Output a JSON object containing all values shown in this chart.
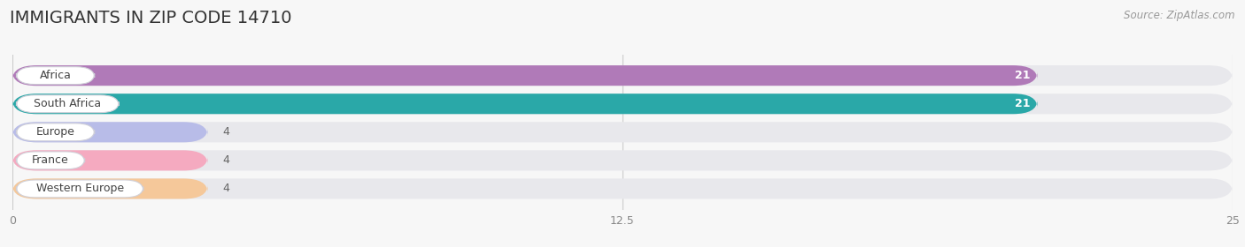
{
  "title": "IMMIGRANTS IN ZIP CODE 14710",
  "source_text": "Source: ZipAtlas.com",
  "categories": [
    "Africa",
    "South Africa",
    "Europe",
    "France",
    "Western Europe"
  ],
  "values": [
    21,
    21,
    4,
    4,
    4
  ],
  "bar_colors": [
    "#b07ab8",
    "#2aa8a8",
    "#b8bce8",
    "#f5aac0",
    "#f5c89a"
  ],
  "xlim": [
    0,
    25
  ],
  "xticks": [
    0,
    12.5,
    25
  ],
  "background_color": "#f7f7f7",
  "bar_bg_color": "#e8e8ec",
  "title_fontsize": 14,
  "bar_height": 0.72,
  "label_pill_widths": [
    1.6,
    2.1,
    1.6,
    1.4,
    2.6
  ]
}
